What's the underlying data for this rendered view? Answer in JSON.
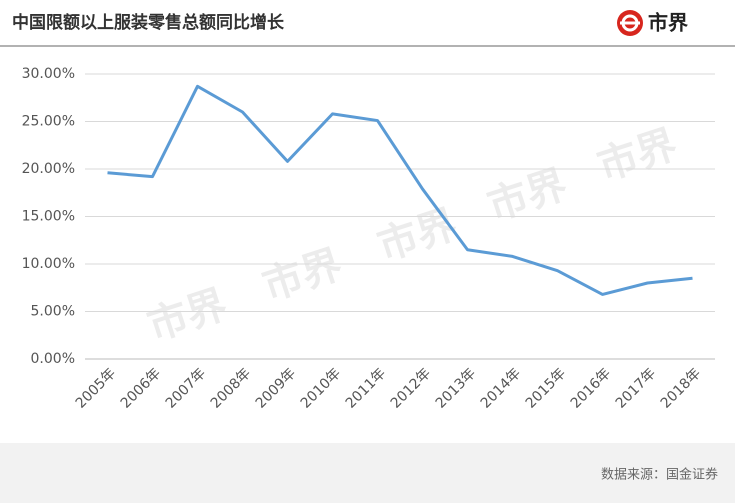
{
  "header": {
    "title": "中国限额以上服装零售总额同比增长",
    "logo": "市界"
  },
  "chart_data": {
    "type": "line",
    "categories": [
      "2005年",
      "2006年",
      "2007年",
      "2008年",
      "2009年",
      "2010年",
      "2011年",
      "2012年",
      "2013年",
      "2014年",
      "2015年",
      "2016年",
      "2017年",
      "2018年"
    ],
    "values": [
      19.6,
      19.2,
      28.7,
      26.0,
      20.8,
      25.8,
      25.1,
      17.9,
      11.5,
      10.8,
      9.3,
      6.8,
      8.0,
      8.5
    ],
    "color": "#5b9bd5",
    "ylim": [
      0,
      30
    ],
    "yticks": [
      {
        "value": 0,
        "label": "0.00%"
      },
      {
        "value": 5,
        "label": "5.00%"
      },
      {
        "value": 10,
        "label": "10.00%"
      },
      {
        "value": 15,
        "label": "15.00%"
      },
      {
        "value": 20,
        "label": "20.00%"
      },
      {
        "value": 25,
        "label": "25.00%"
      },
      {
        "value": 30,
        "label": "30.00%"
      }
    ],
    "grid": true
  },
  "footer": {
    "source": "数据来源：国金证券"
  }
}
